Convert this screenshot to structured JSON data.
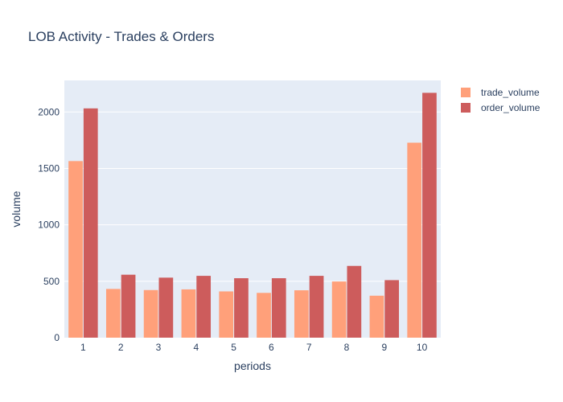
{
  "chart_data": {
    "type": "bar",
    "title": "LOB Activity - Trades & Orders",
    "xlabel": "periods",
    "ylabel": "volume",
    "categories": [
      "1",
      "2",
      "3",
      "4",
      "5",
      "6",
      "7",
      "8",
      "9",
      "10"
    ],
    "series": [
      {
        "name": "trade_volume",
        "color": "#FFA07A",
        "values": [
          1565,
          432,
          422,
          428,
          410,
          397,
          420,
          498,
          372,
          1728
        ]
      },
      {
        "name": "order_volume",
        "color": "#CD5C5C",
        "values": [
          2032,
          558,
          532,
          548,
          527,
          527,
          548,
          636,
          510,
          2170
        ]
      }
    ],
    "ylim": [
      0,
      2280
    ],
    "yticks": [
      0,
      500,
      1000,
      1500,
      2000
    ],
    "grid": true,
    "legend_position": "top-right",
    "plot_background": "#E5ECF6"
  }
}
